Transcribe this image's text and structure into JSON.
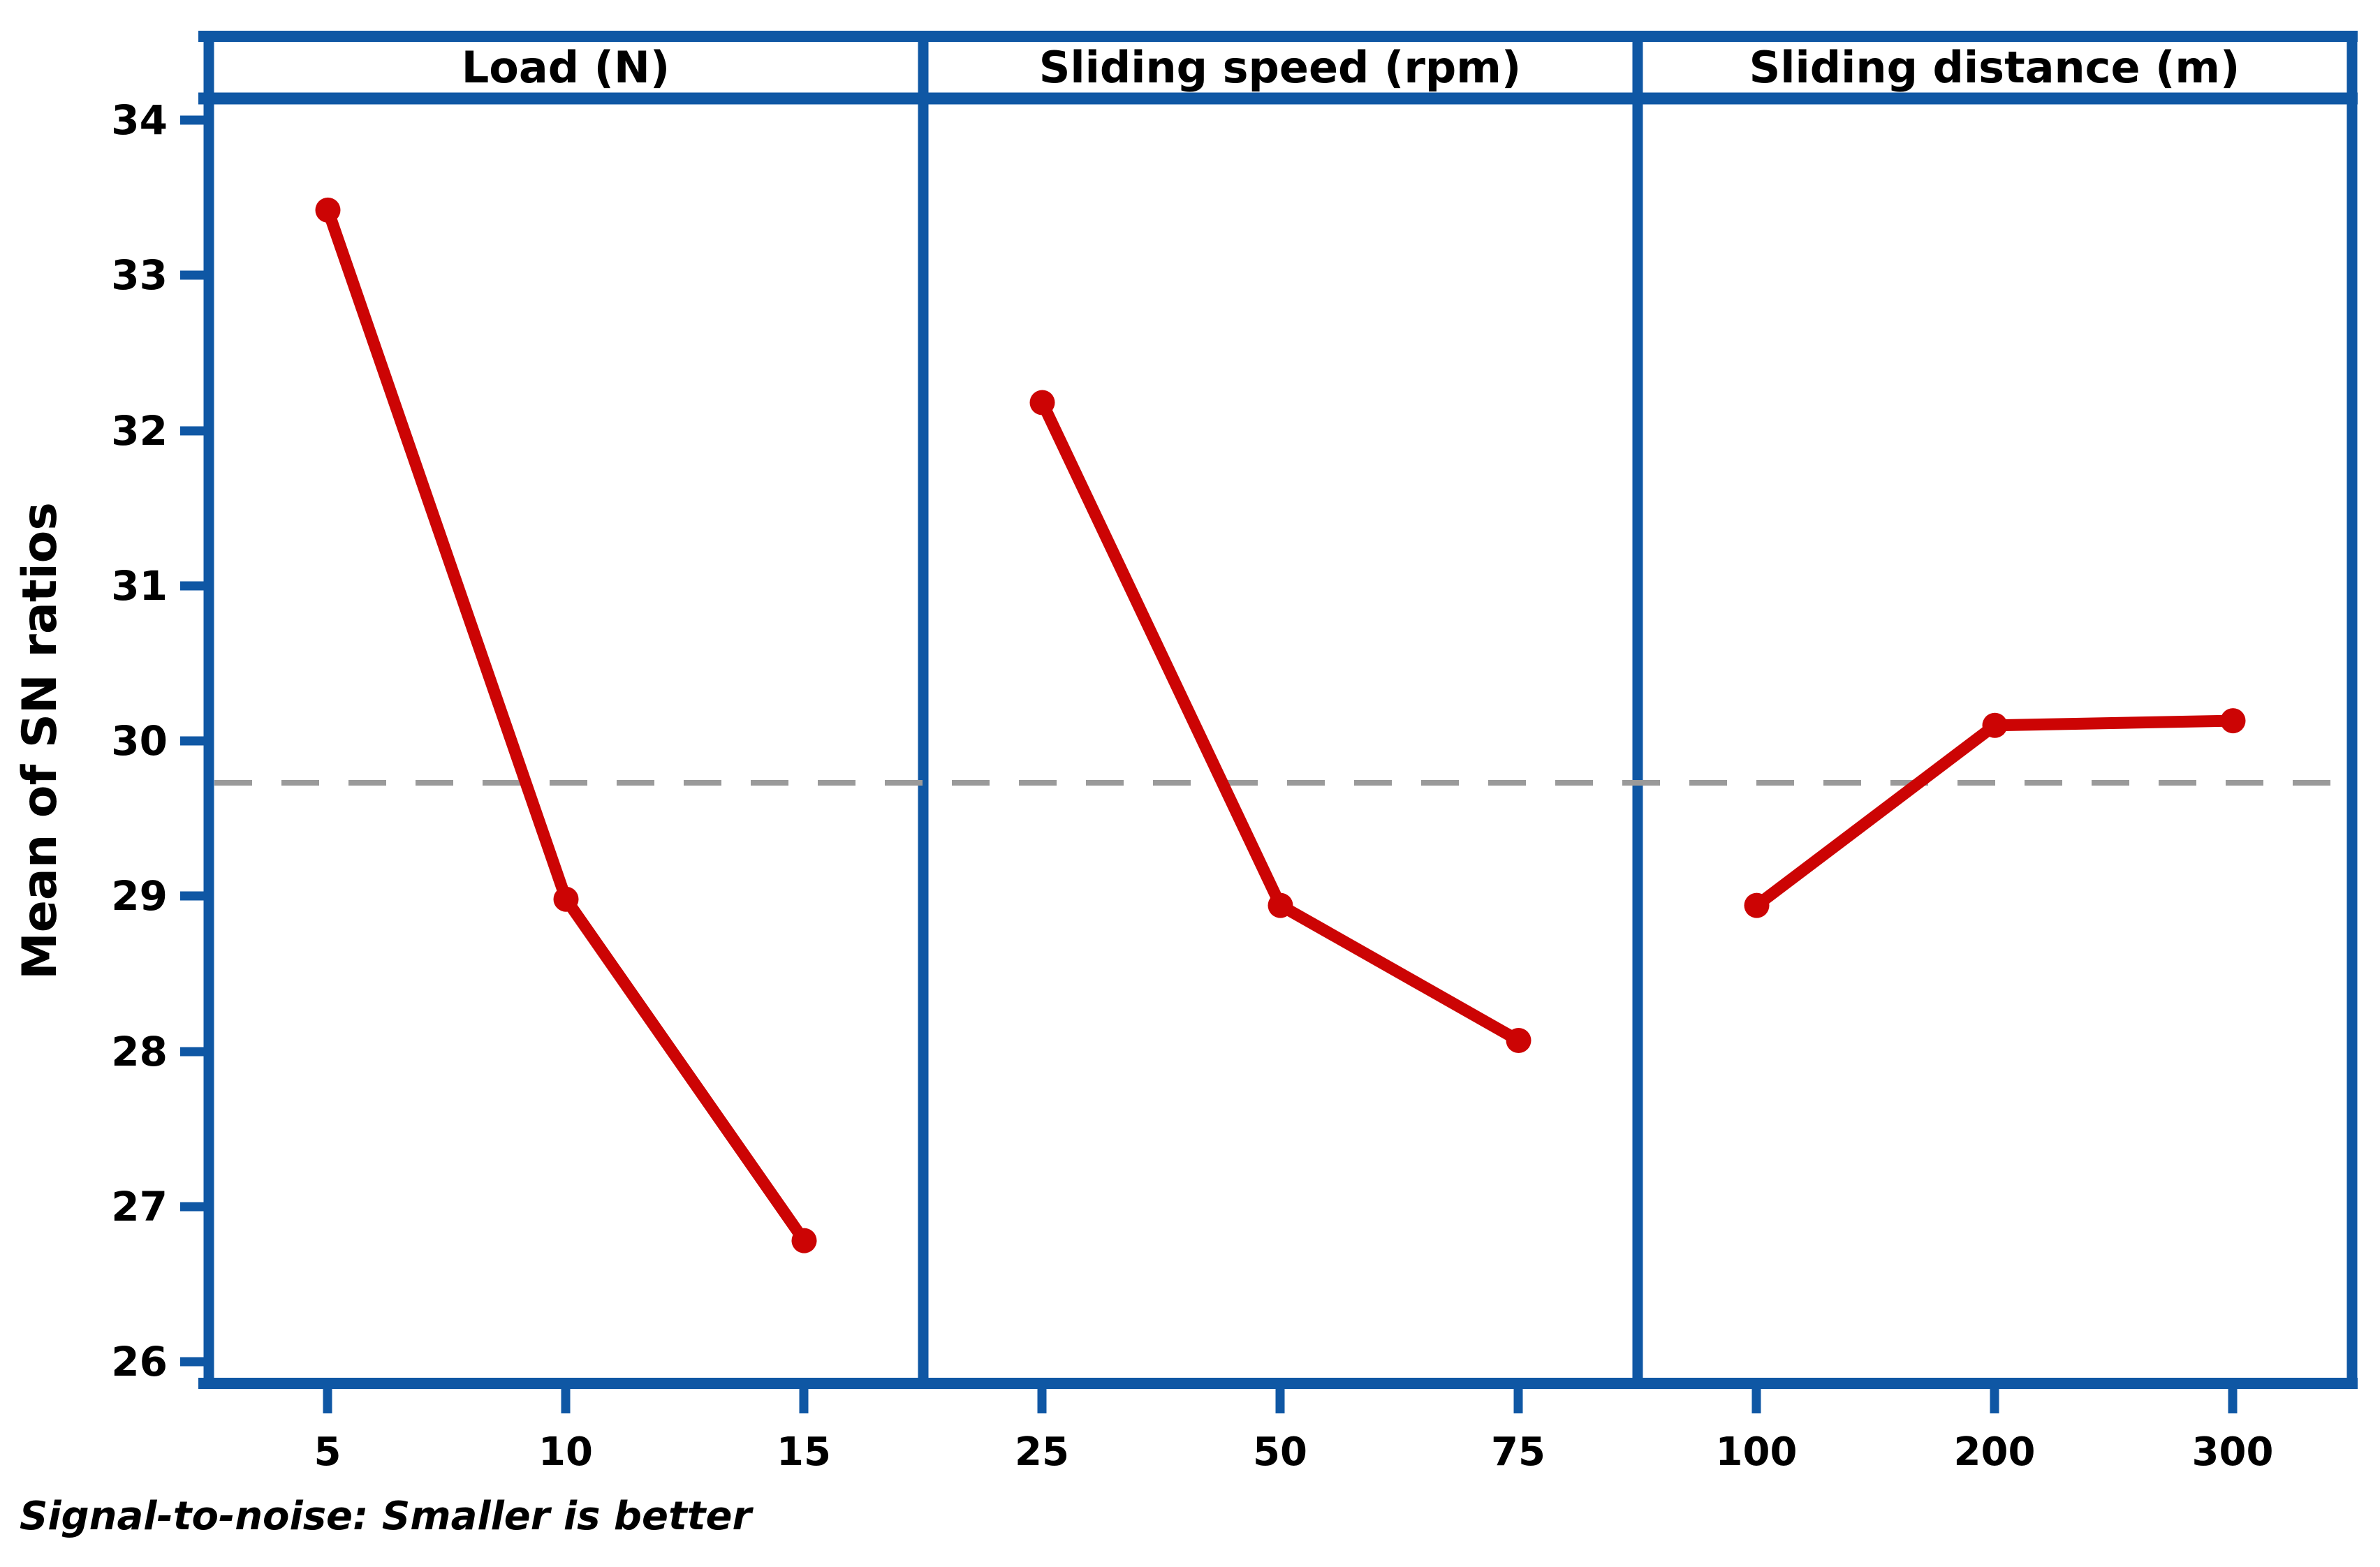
{
  "chart_data": {
    "type": "line",
    "subtype": "main-effects-plot",
    "ylabel": "Mean of SN ratios",
    "footnote": "Signal-to-noise: Smaller is better",
    "ylim": [
      26,
      34
    ],
    "yticks": [
      "26",
      "27",
      "28",
      "29",
      "30",
      "31",
      "32",
      "33",
      "34"
    ],
    "grid": "off",
    "legend": "none",
    "reference_line": 29.73,
    "panels": [
      {
        "title": "Load (N)",
        "categories": [
          "5",
          "10",
          "15"
        ],
        "values": [
          33.42,
          28.98,
          26.78
        ]
      },
      {
        "title": "Sliding speed (rpm)",
        "categories": [
          "25",
          "50",
          "75"
        ],
        "values": [
          32.18,
          28.94,
          28.07
        ]
      },
      {
        "title": "Sliding distance (m)",
        "categories": [
          "100",
          "200",
          "300"
        ],
        "values": [
          28.94,
          30.1,
          30.13
        ]
      }
    ],
    "colors": {
      "line": "#CC0404",
      "marker": "#CC0404",
      "frame": "#0F57A4",
      "reference": "#9A9A9A",
      "text": "#000000",
      "background": "#FFFFFF"
    }
  }
}
